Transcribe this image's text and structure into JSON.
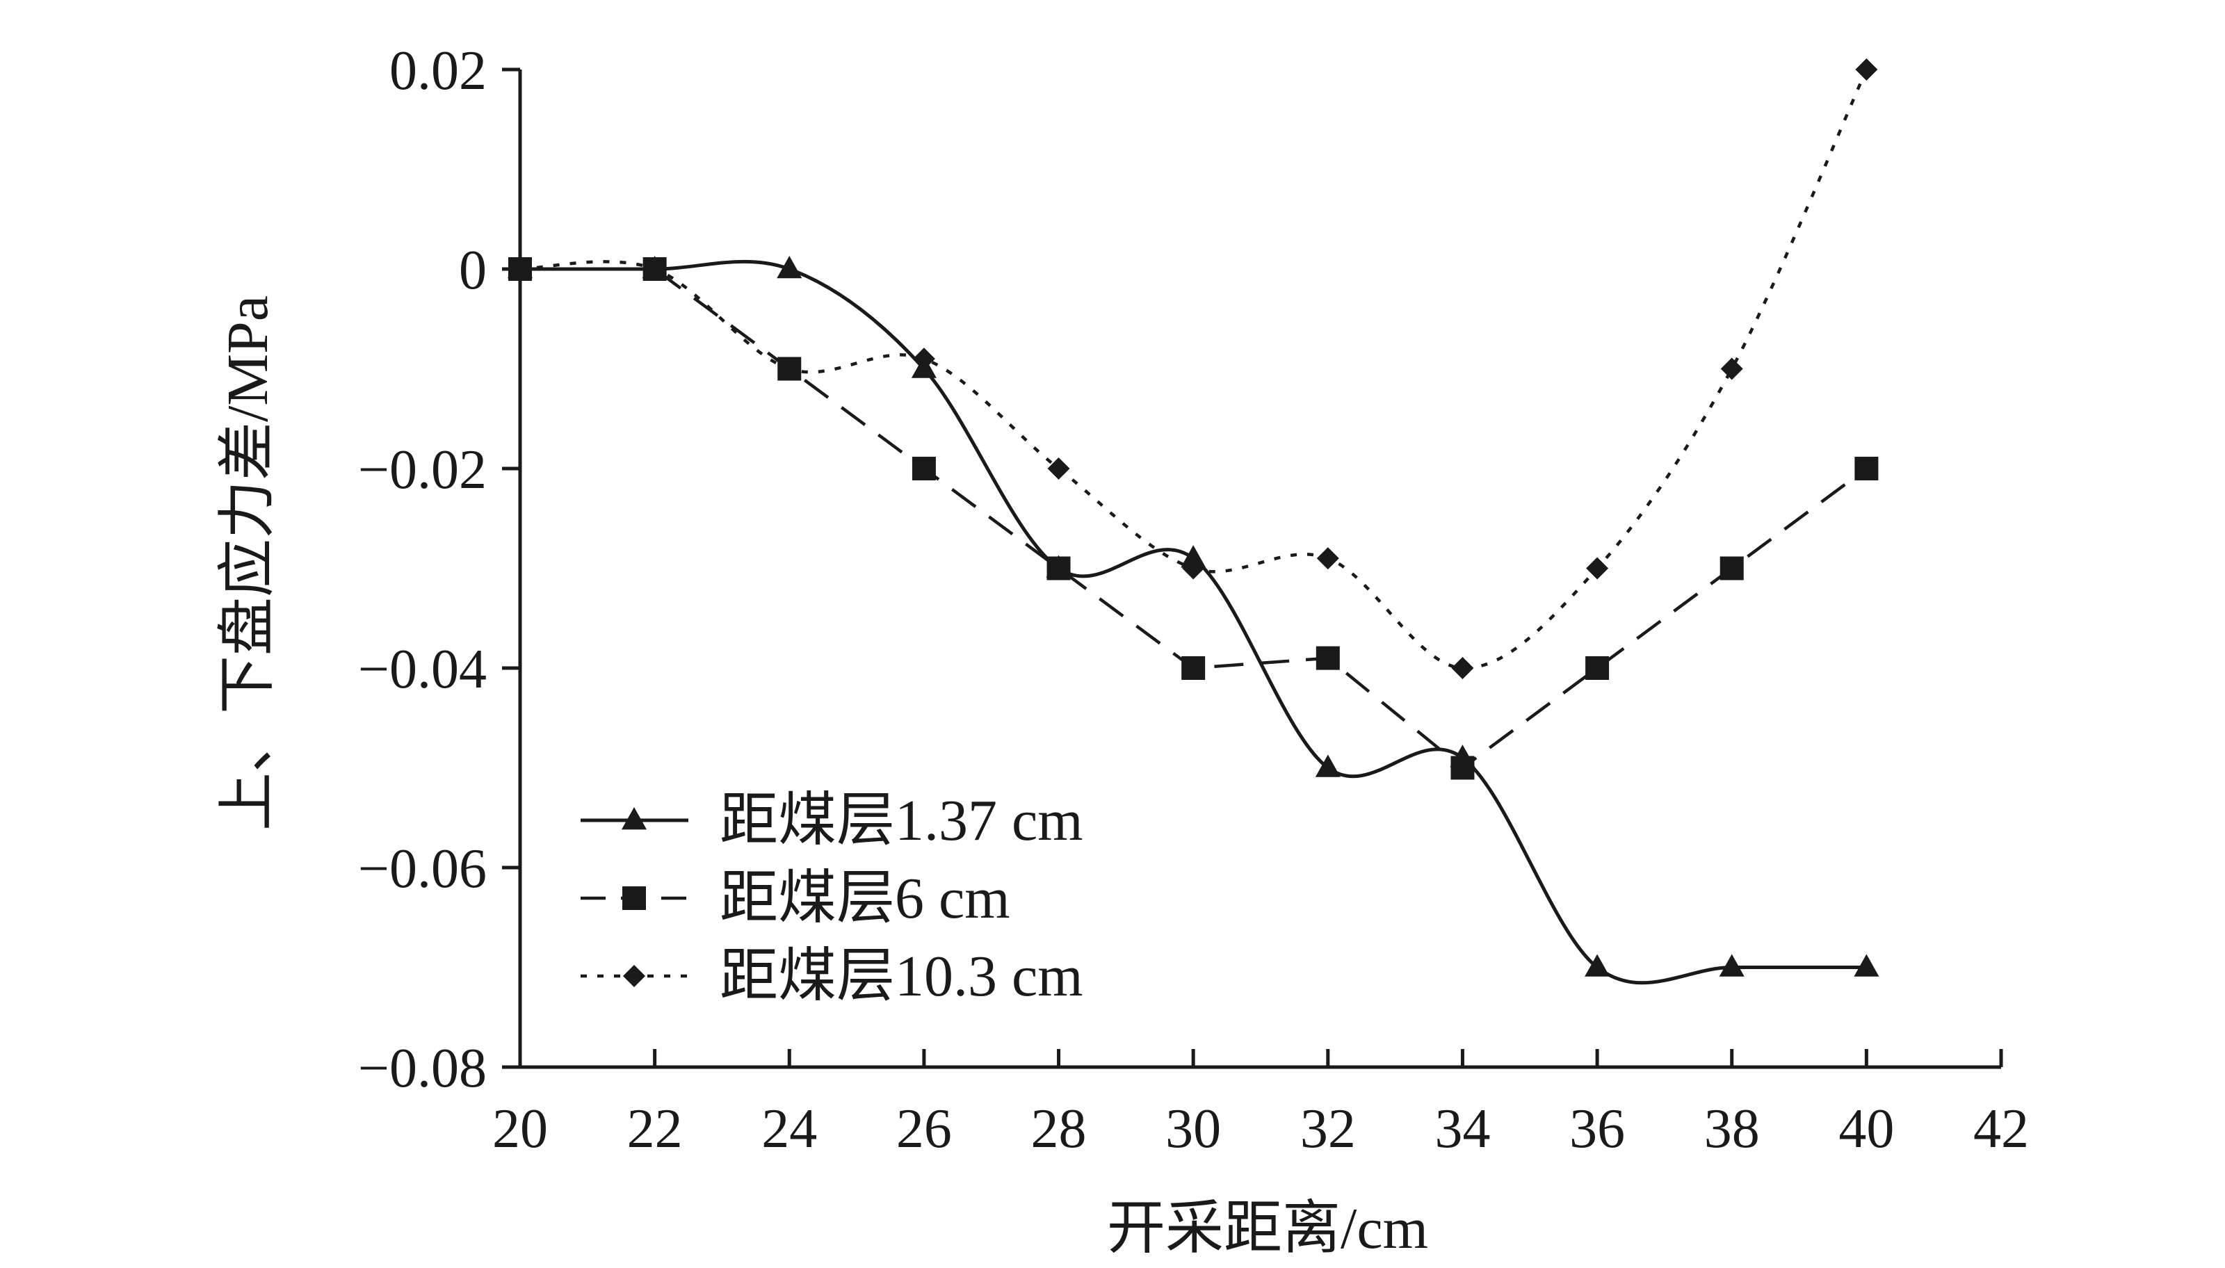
{
  "chart_data": {
    "type": "line",
    "xlabel": "开采距离/cm",
    "ylabel": "上、下盘应力差/MPa",
    "xlim": [
      20,
      42
    ],
    "ylim": [
      -0.08,
      0.02
    ],
    "xticks": [
      20,
      22,
      24,
      26,
      28,
      30,
      32,
      34,
      36,
      38,
      40,
      42
    ],
    "yticks": [
      0.02,
      0,
      -0.02,
      -0.04,
      -0.06,
      -0.08
    ],
    "xtick_labels": [
      "20",
      "22",
      "24",
      "26",
      "28",
      "30",
      "32",
      "34",
      "36",
      "38",
      "40",
      "42"
    ],
    "ytick_labels": [
      "0.02",
      "0",
      "−0.02",
      "−0.04",
      "−0.06",
      "−0.08"
    ],
    "x": [
      20,
      22,
      24,
      26,
      28,
      30,
      32,
      34,
      36,
      38,
      40
    ],
    "grid": false,
    "legend_position": "bottom-left",
    "series": [
      {
        "name": "距煤层1.37 cm",
        "marker": "triangle",
        "line_style": "solid",
        "smooth": true,
        "color": "#1a1a1a",
        "values": [
          0,
          0,
          0,
          -0.01,
          -0.03,
          -0.029,
          -0.05,
          -0.049,
          -0.07,
          -0.07,
          -0.07
        ]
      },
      {
        "name": "距煤层6 cm",
        "marker": "square",
        "line_style": "dashed",
        "smooth": false,
        "color": "#1a1a1a",
        "values": [
          0,
          0,
          -0.01,
          -0.02,
          -0.03,
          -0.04,
          -0.039,
          -0.05,
          -0.04,
          -0.03,
          -0.02
        ]
      },
      {
        "name": "距煤层10.3 cm",
        "marker": "diamond",
        "line_style": "dotted",
        "smooth": true,
        "color": "#1a1a1a",
        "values": [
          0,
          0,
          -0.01,
          -0.009,
          -0.02,
          -0.03,
          -0.029,
          -0.04,
          -0.03,
          -0.01,
          0.02
        ]
      }
    ]
  }
}
